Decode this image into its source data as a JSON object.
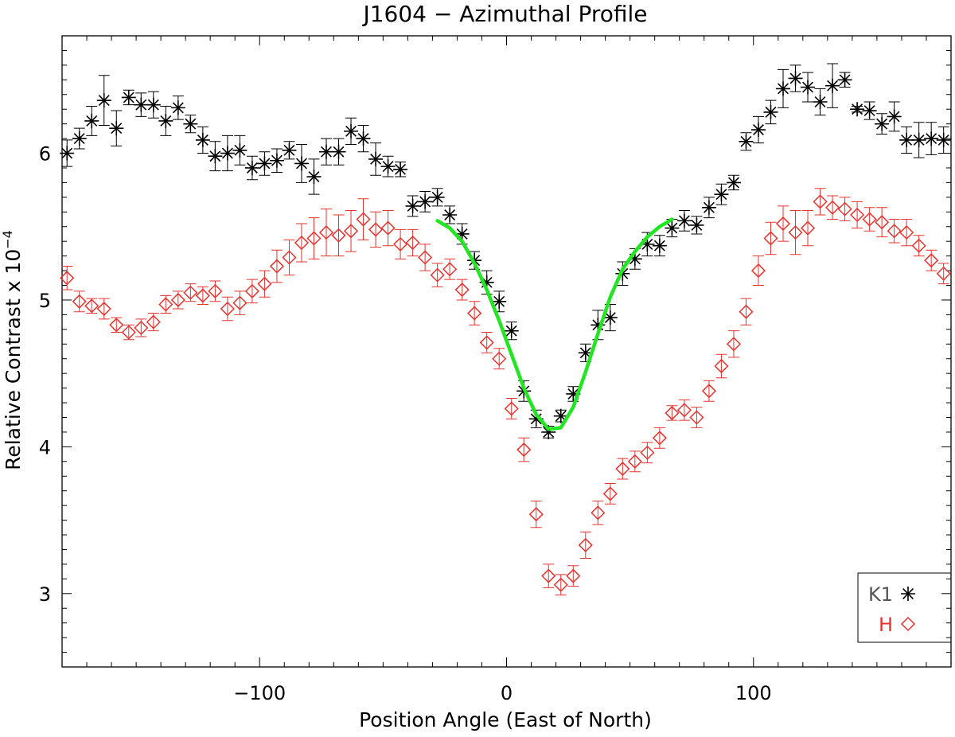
{
  "chart_data": {
    "type": "scatter",
    "title": "J1604 − Azimuthal Profile",
    "xlabel": "Position Angle (East of North)",
    "ylabel": "Relative Contrast x 10",
    "ylabel_exponent": "−4",
    "xlim": [
      -180,
      180
    ],
    "ylim": [
      2.5,
      6.8
    ],
    "x_ticks": [
      -100,
      0,
      100
    ],
    "x_tick_labels": [
      "−100",
      "0",
      "100"
    ],
    "y_ticks": [
      3,
      4,
      5,
      6
    ],
    "y_tick_labels": [
      "3",
      "4",
      "5",
      "6"
    ],
    "grid": false,
    "legend_position": "bottom-right",
    "series": [
      {
        "name": "K1",
        "marker": "asterisk",
        "color": "#000000",
        "x": [
          -178,
          -173,
          -168,
          -163,
          -158,
          -153,
          -148,
          -143,
          -138,
          -133,
          -128,
          -123,
          -118,
          -113,
          -108,
          -103,
          -98,
          -93,
          -88,
          -83,
          -78,
          -73,
          -68,
          -63,
          -58,
          -53,
          -48,
          -43,
          -38,
          -33,
          -28,
          -23,
          -18,
          -13,
          -8,
          -3,
          2,
          7,
          12,
          17,
          22,
          27,
          32,
          37,
          42,
          47,
          52,
          57,
          62,
          67,
          72,
          77,
          82,
          87,
          92,
          97,
          102,
          107,
          112,
          117,
          122,
          127,
          132,
          137,
          142,
          147,
          152,
          157,
          162,
          167,
          172,
          177
        ],
        "y": [
          6.0,
          6.1,
          6.22,
          6.36,
          6.17,
          6.38,
          6.33,
          6.33,
          6.22,
          6.31,
          6.2,
          6.09,
          5.98,
          6.0,
          6.02,
          5.9,
          5.93,
          5.95,
          6.02,
          5.93,
          5.84,
          6.01,
          6.01,
          6.15,
          6.1,
          5.96,
          5.91,
          5.89,
          5.64,
          5.67,
          5.7,
          5.58,
          5.45,
          5.27,
          5.12,
          4.99,
          4.79,
          4.38,
          4.19,
          4.1,
          4.21,
          4.36,
          4.64,
          4.83,
          4.88,
          5.18,
          5.28,
          5.38,
          5.37,
          5.49,
          5.54,
          5.51,
          5.63,
          5.72,
          5.8,
          6.08,
          6.16,
          6.28,
          6.44,
          6.51,
          6.45,
          6.35,
          6.46,
          6.5,
          6.3,
          6.29,
          6.2,
          6.25,
          6.09,
          6.09,
          6.1,
          6.09
        ],
        "err": [
          0.09,
          0.07,
          0.1,
          0.17,
          0.12,
          0.05,
          0.08,
          0.09,
          0.1,
          0.08,
          0.06,
          0.09,
          0.1,
          0.12,
          0.1,
          0.08,
          0.08,
          0.08,
          0.06,
          0.13,
          0.12,
          0.09,
          0.09,
          0.09,
          0.09,
          0.11,
          0.07,
          0.05,
          0.07,
          0.07,
          0.06,
          0.06,
          0.07,
          0.06,
          0.08,
          0.07,
          0.06,
          0.07,
          0.06,
          0.04,
          0.04,
          0.05,
          0.06,
          0.1,
          0.09,
          0.08,
          0.07,
          0.08,
          0.07,
          0.06,
          0.07,
          0.06,
          0.07,
          0.07,
          0.05,
          0.06,
          0.09,
          0.08,
          0.13,
          0.09,
          0.1,
          0.09,
          0.15,
          0.05,
          0.02,
          0.06,
          0.07,
          0.1,
          0.09,
          0.12,
          0.11,
          0.09
        ]
      },
      {
        "name": "H",
        "marker": "diamond",
        "color": "#e8322e",
        "x": [
          -178,
          -173,
          -168,
          -163,
          -158,
          -153,
          -148,
          -143,
          -138,
          -133,
          -128,
          -123,
          -118,
          -113,
          -108,
          -103,
          -98,
          -93,
          -88,
          -83,
          -78,
          -73,
          -68,
          -63,
          -58,
          -53,
          -48,
          -43,
          -38,
          -33,
          -28,
          -23,
          -18,
          -13,
          -8,
          -3,
          2,
          7,
          12,
          17,
          22,
          27,
          32,
          37,
          42,
          47,
          52,
          57,
          62,
          67,
          72,
          77,
          82,
          87,
          92,
          97,
          102,
          107,
          112,
          117,
          122,
          127,
          132,
          137,
          142,
          147,
          152,
          157,
          162,
          167,
          172,
          177
        ],
        "y": [
          5.15,
          4.99,
          4.96,
          4.94,
          4.83,
          4.78,
          4.81,
          4.85,
          4.97,
          5.0,
          5.05,
          5.03,
          5.06,
          4.94,
          4.98,
          5.06,
          5.11,
          5.23,
          5.29,
          5.39,
          5.42,
          5.46,
          5.44,
          5.47,
          5.55,
          5.48,
          5.49,
          5.38,
          5.39,
          5.29,
          5.17,
          5.21,
          5.07,
          4.91,
          4.71,
          4.6,
          4.26,
          3.98,
          3.54,
          3.12,
          3.06,
          3.12,
          3.33,
          3.55,
          3.68,
          3.85,
          3.9,
          3.96,
          4.06,
          4.23,
          4.25,
          4.2,
          4.38,
          4.55,
          4.7,
          4.92,
          5.2,
          5.42,
          5.52,
          5.46,
          5.49,
          5.67,
          5.63,
          5.62,
          5.58,
          5.55,
          5.53,
          5.47,
          5.46,
          5.37,
          5.27,
          5.18
        ],
        "err": [
          0.08,
          0.07,
          0.05,
          0.07,
          0.05,
          0.05,
          0.06,
          0.06,
          0.06,
          0.06,
          0.06,
          0.06,
          0.07,
          0.08,
          0.08,
          0.08,
          0.09,
          0.11,
          0.12,
          0.13,
          0.14,
          0.16,
          0.14,
          0.14,
          0.14,
          0.12,
          0.12,
          0.1,
          0.09,
          0.09,
          0.08,
          0.07,
          0.07,
          0.08,
          0.07,
          0.07,
          0.07,
          0.08,
          0.09,
          0.08,
          0.07,
          0.07,
          0.09,
          0.08,
          0.07,
          0.07,
          0.07,
          0.07,
          0.07,
          0.05,
          0.07,
          0.07,
          0.07,
          0.08,
          0.09,
          0.09,
          0.1,
          0.11,
          0.12,
          0.15,
          0.12,
          0.09,
          0.08,
          0.08,
          0.09,
          0.08,
          0.1,
          0.08,
          0.09,
          0.07,
          0.07,
          0.07
        ]
      },
      {
        "marker": "line",
        "color": "#22e622",
        "x": [
          -28,
          -23,
          -18,
          -13,
          -8,
          -3,
          2,
          7,
          12,
          17,
          22,
          27,
          32,
          37,
          42,
          47,
          52,
          57,
          62,
          67
        ],
        "y": [
          5.54,
          5.49,
          5.4,
          5.25,
          5.07,
          4.86,
          4.63,
          4.4,
          4.22,
          4.12,
          4.13,
          4.27,
          4.51,
          4.77,
          5.02,
          5.21,
          5.33,
          5.43,
          5.5,
          5.55
        ]
      }
    ]
  }
}
